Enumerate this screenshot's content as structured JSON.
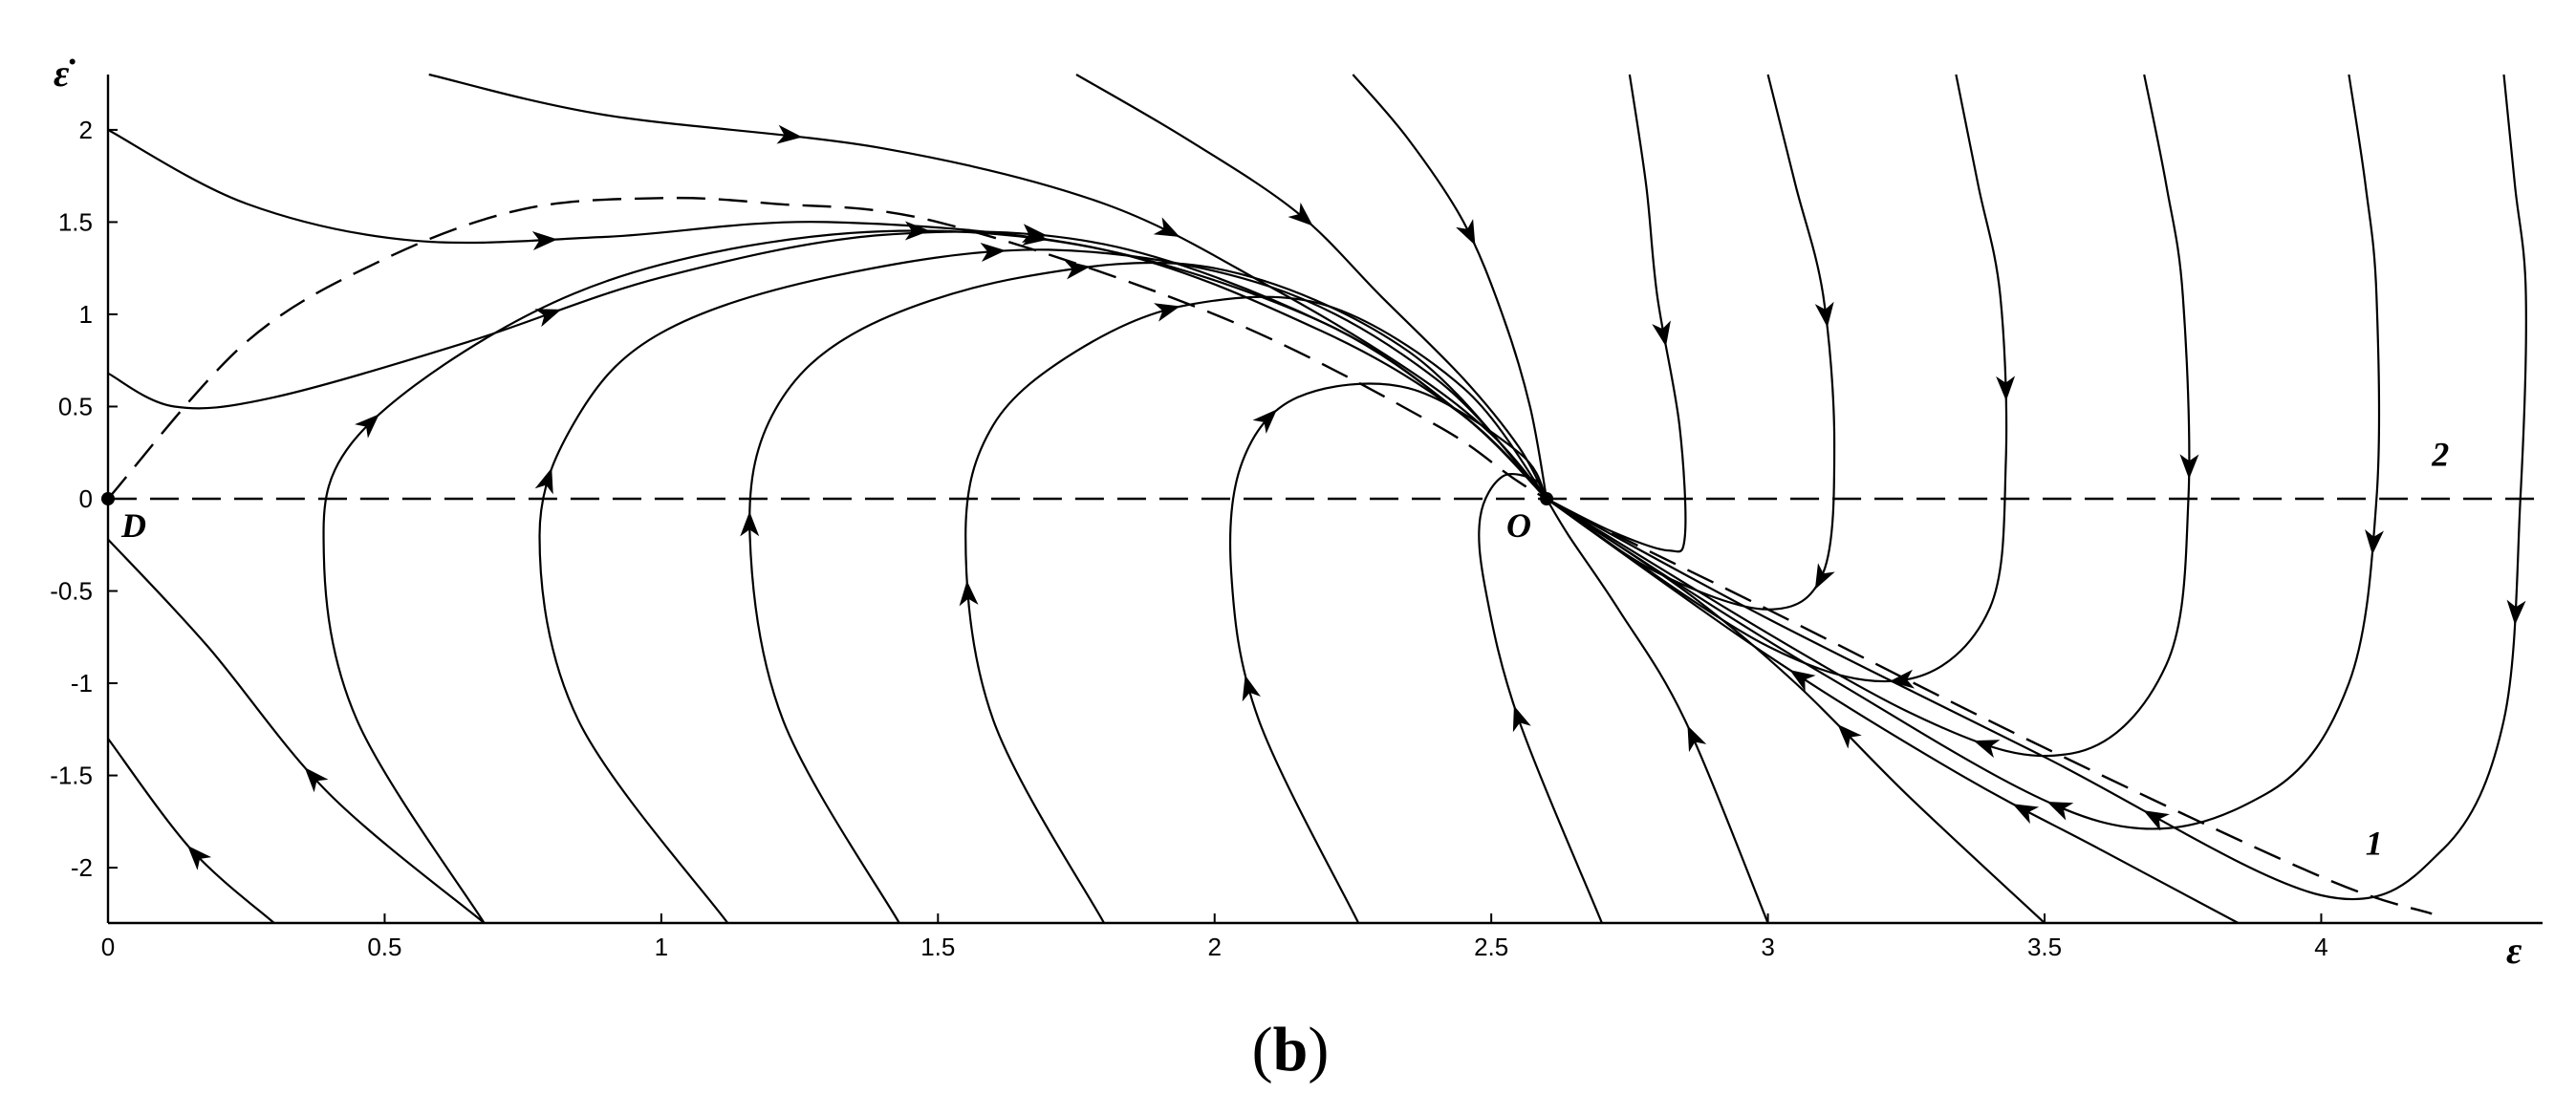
{
  "chart_data": {
    "type": "line",
    "title": "",
    "xlabel": "ε",
    "ylabel": "ε̇",
    "xlim": [
      0,
      4.4
    ],
    "ylim": [
      -2.3,
      2.3
    ],
    "grid": false,
    "x_ticks": [
      0,
      0.5,
      1,
      1.5,
      2,
      2.5,
      3,
      3.5,
      4
    ],
    "x_tick_labels": [
      "0",
      "0.5",
      "1",
      "1.5",
      "2",
      "2.5",
      "3",
      "3.5",
      "4"
    ],
    "y_ticks": [
      2,
      1.5,
      1,
      0.5,
      0,
      -0.5,
      -1,
      -1.5,
      -2
    ],
    "y_tick_labels": [
      "2",
      "1.5",
      "1",
      "0.5",
      "0",
      "-0.5",
      "-1",
      "-1.5",
      "-2"
    ],
    "points": [
      {
        "name": "D",
        "x": 0,
        "y": 0
      },
      {
        "name": "O",
        "x": 2.6,
        "y": 0
      }
    ],
    "isoclines": [
      {
        "name": "1",
        "label_at": [
          4.08,
          -1.93
        ],
        "x": [
          0,
          0.25,
          0.5,
          0.75,
          1.0,
          1.2,
          1.5,
          2.0,
          2.4,
          2.6,
          3.0,
          3.5,
          4.0,
          4.2
        ],
        "y": [
          0,
          0.85,
          1.3,
          1.57,
          1.63,
          1.6,
          1.5,
          1.0,
          0.4,
          0,
          -0.6,
          -1.35,
          -2.05,
          -2.25
        ]
      },
      {
        "name": "2",
        "label_at": [
          4.2,
          0.18
        ],
        "x": [
          0,
          4.4
        ],
        "y": [
          0,
          0
        ]
      }
    ],
    "arrow_direction": "along increasing parameter (toward O)",
    "trajectories": [
      {
        "x": [
          0.0,
          0.25,
          0.55,
          0.9,
          1.3,
          1.8,
          2.2,
          2.45,
          2.6
        ],
        "y": [
          2.0,
          1.6,
          1.4,
          1.42,
          1.5,
          1.35,
          0.9,
          0.45,
          0.0
        ]
      },
      {
        "x": [
          0.58,
          0.9,
          1.4,
          1.8,
          2.1,
          2.35,
          2.5,
          2.6
        ],
        "y": [
          2.3,
          2.08,
          1.9,
          1.6,
          1.15,
          0.7,
          0.35,
          0.0
        ]
      },
      {
        "x": [
          1.75,
          1.95,
          2.15,
          2.3,
          2.45,
          2.55,
          2.6
        ],
        "y": [
          2.3,
          1.95,
          1.55,
          1.1,
          0.65,
          0.28,
          0.0
        ]
      },
      {
        "x": [
          2.25,
          2.35,
          2.45,
          2.52,
          2.57,
          2.6
        ],
        "y": [
          2.3,
          1.95,
          1.5,
          1.0,
          0.5,
          0.0
        ]
      },
      {
        "x": [
          0.0,
          0.12,
          0.3,
          0.65,
          1.0,
          1.4,
          1.8,
          2.2,
          2.45,
          2.6
        ],
        "y": [
          0.68,
          0.5,
          0.55,
          0.85,
          1.2,
          1.43,
          1.38,
          0.95,
          0.45,
          0.0
        ]
      },
      {
        "x": [
          0.68,
          0.45,
          0.39,
          0.44,
          0.7,
          1.0,
          1.4,
          1.8,
          2.2,
          2.45,
          2.6
        ],
        "y": [
          -2.3,
          -1.2,
          -0.3,
          0.3,
          0.9,
          1.27,
          1.45,
          1.35,
          0.95,
          0.45,
          0.0
        ]
      },
      {
        "x": [
          1.12,
          0.85,
          0.78,
          0.85,
          1.0,
          1.3,
          1.7,
          2.1,
          2.4,
          2.6
        ],
        "y": [
          -2.3,
          -1.2,
          -0.2,
          0.45,
          0.9,
          1.2,
          1.35,
          1.15,
          0.65,
          0.0
        ]
      },
      {
        "x": [
          1.43,
          1.22,
          1.16,
          1.2,
          1.35,
          1.65,
          2.0,
          2.35,
          2.6
        ],
        "y": [
          -2.3,
          -1.2,
          -0.2,
          0.45,
          0.9,
          1.2,
          1.25,
          0.8,
          0.0
        ]
      },
      {
        "x": [
          1.8,
          1.6,
          1.55,
          1.6,
          1.75,
          1.95,
          2.2,
          2.45,
          2.6
        ],
        "y": [
          -2.3,
          -1.2,
          -0.2,
          0.4,
          0.8,
          1.05,
          1.05,
          0.6,
          0.0
        ]
      },
      {
        "x": [
          2.26,
          2.08,
          2.03,
          2.05,
          2.15,
          2.35,
          2.55,
          2.6
        ],
        "y": [
          -2.3,
          -1.2,
          -0.4,
          0.2,
          0.55,
          0.6,
          0.25,
          0.0
        ]
      },
      {
        "x": [
          2.7,
          2.55,
          2.49,
          2.48,
          2.52,
          2.58,
          2.6
        ],
        "y": [
          -2.3,
          -1.2,
          -0.5,
          -0.1,
          0.12,
          0.1,
          0.0
        ]
      },
      {
        "x": [
          3.0,
          2.85,
          2.73,
          2.64,
          2.6
        ],
        "y": [
          -2.3,
          -1.2,
          -0.6,
          -0.2,
          0.0
        ]
      },
      {
        "x": [
          3.5,
          3.25,
          3.05,
          2.85,
          2.6
        ],
        "y": [
          -2.3,
          -1.6,
          -1.0,
          -0.5,
          0.0
        ]
      },
      {
        "x": [
          3.85,
          3.6,
          3.35,
          3.0,
          2.6
        ],
        "y": [
          -2.3,
          -1.9,
          -1.5,
          -0.85,
          0.0
        ]
      },
      {
        "x": [
          0.3,
          0.15,
          0.0
        ],
        "y": [
          -2.3,
          -1.9,
          -1.3
        ]
      },
      {
        "x": [
          0.68,
          0.4,
          0.18,
          0.0
        ],
        "y": [
          -2.3,
          -1.6,
          -0.8,
          -0.22
        ]
      },
      {
        "x": [
          2.75,
          2.78,
          2.8,
          2.84,
          2.85,
          2.82,
          2.72,
          2.6
        ],
        "y": [
          2.3,
          1.7,
          1.1,
          0.4,
          -0.2,
          -0.28,
          -0.18,
          0.0
        ]
      },
      {
        "x": [
          3.0,
          3.05,
          3.1,
          3.12,
          3.1,
          3.0,
          2.8,
          2.6
        ],
        "y": [
          2.3,
          1.7,
          1.1,
          0.3,
          -0.4,
          -0.6,
          -0.4,
          0.0
        ]
      },
      {
        "x": [
          3.34,
          3.38,
          3.42,
          3.43,
          3.4,
          3.25,
          3.0,
          2.6
        ],
        "y": [
          2.3,
          1.7,
          1.1,
          0.2,
          -0.6,
          -0.98,
          -0.8,
          0.0
        ]
      },
      {
        "x": [
          3.68,
          3.72,
          3.75,
          3.76,
          3.72,
          3.55,
          3.25,
          2.6
        ],
        "y": [
          2.3,
          1.7,
          1.1,
          0.0,
          -0.9,
          -1.38,
          -1.15,
          0.0
        ]
      },
      {
        "x": [
          4.05,
          4.08,
          4.1,
          4.1,
          4.05,
          3.9,
          3.6,
          3.1,
          2.6
        ],
        "y": [
          2.3,
          1.7,
          1.1,
          0.0,
          -1.0,
          -1.6,
          -1.75,
          -0.95,
          0.0
        ]
      },
      {
        "x": [
          4.33,
          4.35,
          4.37,
          4.36,
          4.33,
          4.22,
          4.0,
          3.5,
          3.0,
          2.6
        ],
        "y": [
          2.3,
          1.7,
          1.1,
          0.0,
          -1.2,
          -1.9,
          -2.15,
          -1.4,
          -0.65,
          0.0
        ]
      }
    ],
    "panel_label": {
      "open": "(",
      "letter": "b",
      "close": ")"
    }
  }
}
